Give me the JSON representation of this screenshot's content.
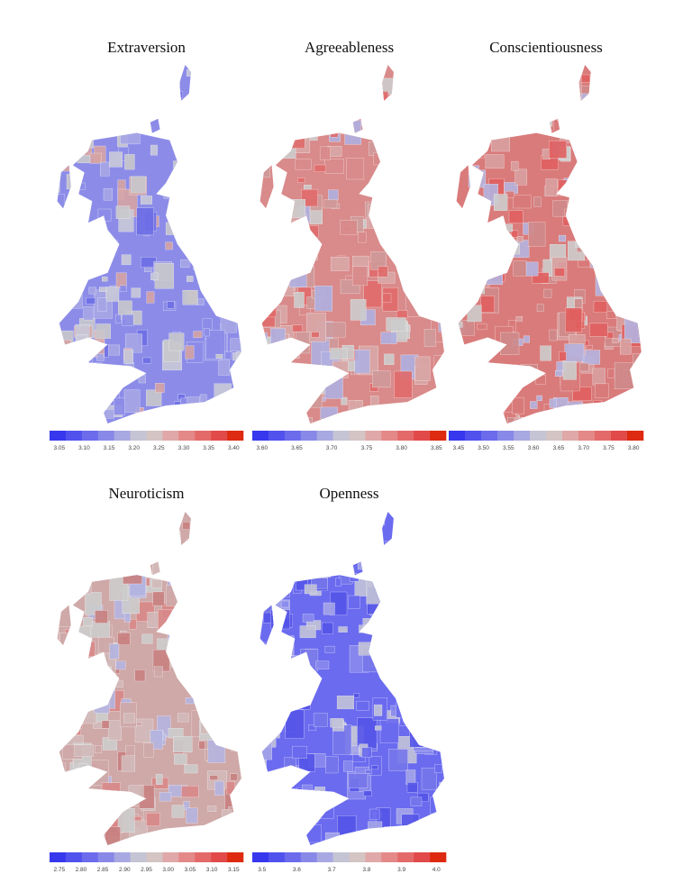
{
  "panels": [
    {
      "title": "Extraversion",
      "ticks": [
        "3.05",
        "3.10",
        "3.15",
        "3.20",
        "3.25",
        "3.30",
        "3.35",
        "3.40"
      ]
    },
    {
      "title": "Agreeableness",
      "ticks": [
        "3.60",
        "3.65",
        "3.70",
        "3.75",
        "3.80",
        "3.85"
      ]
    },
    {
      "title": "Conscientiousness",
      "ticks": [
        "3.45",
        "3.50",
        "3.55",
        "3.60",
        "3.65",
        "3.70",
        "3.75",
        "3.80"
      ]
    },
    {
      "title": "Neuroticism",
      "ticks": [
        "2.75",
        "2.80",
        "2.85",
        "2.90",
        "2.95",
        "3.00",
        "3.05",
        "3.10",
        "3.15"
      ]
    },
    {
      "title": "Openness",
      "ticks": [
        "3.5",
        "3.6",
        "3.7",
        "3.8",
        "3.9",
        "4.0"
      ]
    }
  ]
}
